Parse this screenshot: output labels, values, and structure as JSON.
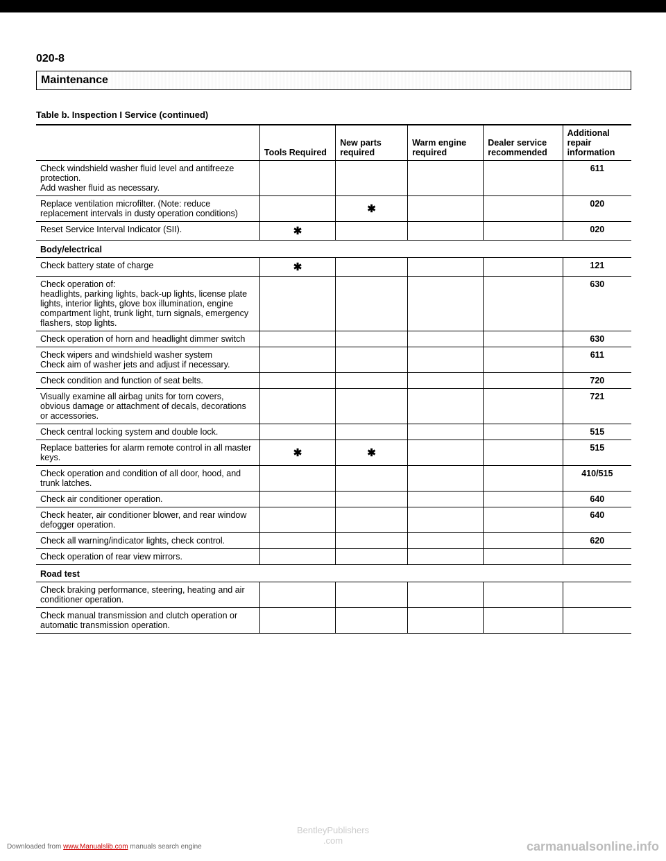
{
  "pageNumber": "020-8",
  "sectionTitle": "Maintenance",
  "tableTitle": "Table b. Inspection I Service (continued)",
  "headers": {
    "desc": "",
    "tools": "Tools Required",
    "parts": "New parts required",
    "warm": "Warm engine required",
    "dealer": "Dealer service recommended",
    "info": "Additional repair information"
  },
  "rows": [
    {
      "desc": "Check windshield washer fluid level and antifreeze protection.\nAdd washer fluid as necessary.",
      "tools": "",
      "parts": "",
      "warm": "",
      "dealer": "",
      "info": "611"
    },
    {
      "desc": "Replace ventilation microfilter. (Note: reduce replacement intervals in dusty operation conditions)",
      "tools": "",
      "parts": "*",
      "warm": "",
      "dealer": "",
      "info": "020"
    },
    {
      "desc": "Reset Service Interval Indicator (SII).",
      "tools": "*",
      "parts": "",
      "warm": "",
      "dealer": "",
      "info": "020"
    },
    {
      "section": "Body/electrical"
    },
    {
      "desc": "Check battery state of charge",
      "tools": "*",
      "parts": "",
      "warm": "",
      "dealer": "",
      "info": "121"
    },
    {
      "desc": "Check operation of:\nheadlights, parking lights, back-up lights, license plate lights, interior lights, glove box illumination, engine compartment light, trunk light, turn signals, emergency flashers, stop lights.",
      "tools": "",
      "parts": "",
      "warm": "",
      "dealer": "",
      "info": "630"
    },
    {
      "desc": "Check operation of horn and headlight dimmer switch",
      "tools": "",
      "parts": "",
      "warm": "",
      "dealer": "",
      "info": "630"
    },
    {
      "desc": "Check wipers and windshield washer system\nCheck aim of washer jets and adjust if necessary.",
      "tools": "",
      "parts": "",
      "warm": "",
      "dealer": "",
      "info": "611"
    },
    {
      "desc": "Check condition and function of seat belts.",
      "tools": "",
      "parts": "",
      "warm": "",
      "dealer": "",
      "info": "720"
    },
    {
      "desc": "Visually examine all airbag units for torn covers, obvious damage or attachment of decals, decorations or accessories.",
      "tools": "",
      "parts": "",
      "warm": "",
      "dealer": "",
      "info": "721"
    },
    {
      "desc": "Check central locking system and double lock.",
      "tools": "",
      "parts": "",
      "warm": "",
      "dealer": "",
      "info": "515"
    },
    {
      "desc": "Replace batteries for alarm remote control in all master keys.",
      "tools": "*",
      "parts": "*",
      "warm": "",
      "dealer": "",
      "info": "515"
    },
    {
      "desc": "Check operation and condition of all door, hood, and trunk latches.",
      "tools": "",
      "parts": "",
      "warm": "",
      "dealer": "",
      "info": "410/515"
    },
    {
      "desc": "Check air conditioner operation.",
      "tools": "",
      "parts": "",
      "warm": "",
      "dealer": "",
      "info": "640"
    },
    {
      "desc": "Check heater, air conditioner blower, and rear window defogger operation.",
      "tools": "",
      "parts": "",
      "warm": "",
      "dealer": "",
      "info": "640"
    },
    {
      "desc": "Check all warning/indicator lights, check control.",
      "tools": "",
      "parts": "",
      "warm": "",
      "dealer": "",
      "info": "620"
    },
    {
      "desc": "Check operation of rear view mirrors.",
      "tools": "",
      "parts": "",
      "warm": "",
      "dealer": "",
      "info": ""
    },
    {
      "section": "Road test"
    },
    {
      "desc": "Check braking performance, steering, heating and air conditioner operation.",
      "tools": "",
      "parts": "",
      "warm": "",
      "dealer": "",
      "info": ""
    },
    {
      "desc": "Check manual transmission and clutch operation or automatic transmission operation.",
      "tools": "",
      "parts": "",
      "warm": "",
      "dealer": "",
      "info": ""
    }
  ],
  "watermark": {
    "line1": "BentleyPublishers",
    "line2": ".com"
  },
  "footer": {
    "left_prefix": "Downloaded from ",
    "left_link": "www.Manualslib.com",
    "left_suffix": " manuals search engine",
    "right": "carmanualsonline.info"
  }
}
